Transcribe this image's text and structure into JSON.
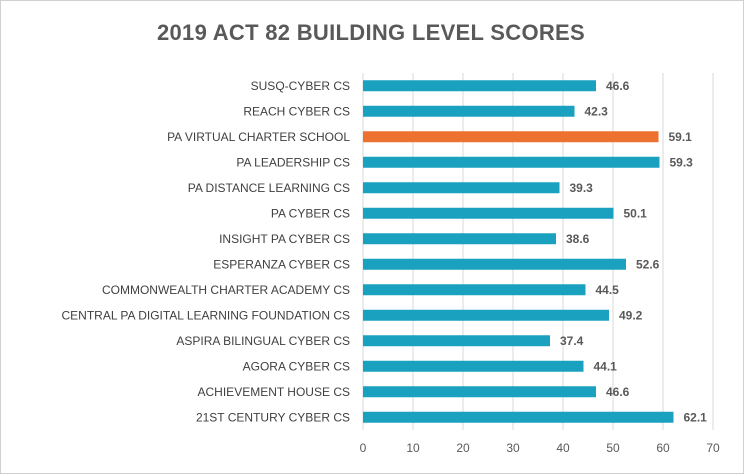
{
  "chart_data": {
    "type": "bar",
    "orientation": "horizontal",
    "title": "2019 ACT 82 BUILDING LEVEL SCORES",
    "xlabel": "",
    "ylabel": "",
    "xlim": [
      0,
      70
    ],
    "x_ticks": [
      0,
      10,
      20,
      30,
      40,
      50,
      60,
      70
    ],
    "grid": true,
    "legend": "none",
    "categories": [
      "SUSQ-CYBER CS",
      "REACH CYBER CS",
      "PA VIRTUAL CHARTER SCHOOL",
      "PA LEADERSHIP CS",
      "PA DISTANCE LEARNING CS",
      "PA CYBER CS",
      "INSIGHT PA CYBER CS",
      "ESPERANZA CYBER CS",
      "COMMONWEALTH CHARTER ACADEMY CS",
      "CENTRAL PA DIGITAL LEARNING FOUNDATION CS",
      "ASPIRA BILINGUAL CYBER CS",
      "AGORA CYBER CS",
      "ACHIEVEMENT HOUSE CS",
      "21ST CENTURY CYBER CS"
    ],
    "values": [
      46.6,
      42.3,
      59.1,
      59.3,
      39.3,
      50.1,
      38.6,
      52.6,
      44.5,
      49.2,
      37.4,
      44.1,
      46.6,
      62.1
    ],
    "value_labels": [
      "46.6",
      "42.3",
      "59.1",
      "59.3",
      "39.3",
      "50.1",
      "38.6",
      "52.6",
      "44.5",
      "49.2",
      "37.4",
      "44.1",
      "46.6",
      "62.1"
    ],
    "highlight_category": "PA VIRTUAL CHARTER SCHOOL",
    "colors": {
      "bar": "#1ba1c0",
      "highlight": "#ed7230",
      "grid": "#d9d9d9",
      "title": "#595959"
    }
  }
}
